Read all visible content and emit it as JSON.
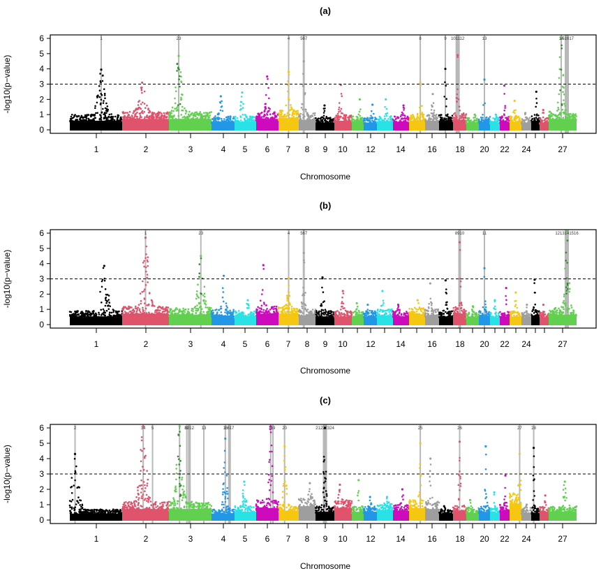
{
  "chart_data": [
    {
      "type": "scatter",
      "subtype": "manhattan",
      "title": "(a)",
      "xlabel": "Chromosome",
      "ylabel": "-log10(p−value)",
      "ylim": [
        0,
        6.2
      ],
      "yticks": [
        0,
        1,
        2,
        3,
        4,
        5,
        6
      ],
      "threshold": 3,
      "xtick_labels": [
        "1",
        "2",
        "3",
        "4",
        "5",
        "6",
        "7",
        "8",
        "9",
        "10",
        "12",
        "14",
        "16",
        "18",
        "20",
        "22",
        "24",
        "27"
      ],
      "chromosomes": [
        {
          "chr": 1,
          "max": 3.95,
          "base": 1.0
        },
        {
          "chr": 2,
          "max": 3.1,
          "base": 1.2
        },
        {
          "chr": 3,
          "max": 4.85,
          "base": 1.2
        },
        {
          "chr": 4,
          "max": 2.2,
          "base": 0.9
        },
        {
          "chr": 5,
          "max": 2.45,
          "base": 0.9
        },
        {
          "chr": 6,
          "max": 3.5,
          "base": 1.2
        },
        {
          "chr": 7,
          "max": 3.8,
          "base": 1.3
        },
        {
          "chr": 8,
          "max": 4.5,
          "base": 1.1
        },
        {
          "chr": 9,
          "max": 1.6,
          "base": 0.8
        },
        {
          "chr": 10,
          "max": 2.95,
          "base": 1.0
        },
        {
          "chr": 11,
          "max": 2.0,
          "base": 0.9
        },
        {
          "chr": 12,
          "max": 1.65,
          "base": 0.8
        },
        {
          "chr": 13,
          "max": 2.0,
          "base": 0.9
        },
        {
          "chr": 14,
          "max": 1.6,
          "base": 0.9
        },
        {
          "chr": 15,
          "max": 3.1,
          "base": 1.0
        },
        {
          "chr": 16,
          "max": 2.35,
          "base": 1.0
        },
        {
          "chr": 17,
          "max": 4.0,
          "base": 1.0
        },
        {
          "chr": 18,
          "max": 4.9,
          "base": 1.1
        },
        {
          "chr": 19,
          "max": 1.0,
          "base": 0.8
        },
        {
          "chr": 20,
          "max": 3.3,
          "base": 0.9
        },
        {
          "chr": 21,
          "max": 1.0,
          "base": 0.8
        },
        {
          "chr": 22,
          "max": 2.9,
          "base": 0.9
        },
        {
          "chr": 23,
          "max": 1.9,
          "base": 0.9
        },
        {
          "chr": 24,
          "max": 1.1,
          "base": 0.8
        },
        {
          "chr": 25,
          "max": 2.5,
          "base": 1.0
        },
        {
          "chr": 26,
          "max": 1.3,
          "base": 0.8
        },
        {
          "chr": 27,
          "max": 6.2,
          "base": 1.2
        }
      ],
      "highlight_labels": [
        "1",
        "2",
        "3",
        "4",
        "5",
        "6",
        "7",
        "8",
        "9",
        "10",
        "11",
        "12",
        "13",
        "14",
        "15",
        "16",
        "17"
      ],
      "highlights": [
        {
          "chr": 1,
          "pos": 0.6,
          "label": "1"
        },
        {
          "chr": 3,
          "pos": 0.23,
          "label": "23"
        },
        {
          "chr": 7,
          "pos": 0.5,
          "label": "4"
        },
        {
          "chr": 8,
          "pos": 0.3,
          "label": "567"
        },
        {
          "chr": 15,
          "pos": 0.7,
          "label": "8"
        },
        {
          "chr": 17,
          "pos": 0.45,
          "label": "9"
        },
        {
          "chr": 18,
          "pos": 0.35,
          "label": "101112"
        },
        {
          "chr": 20,
          "pos": 0.5,
          "label": "13"
        },
        {
          "chr": 27,
          "pos": 0.45,
          "label": "14"
        },
        {
          "chr": 27,
          "pos": 0.65,
          "label": "151617"
        }
      ]
    },
    {
      "type": "scatter",
      "subtype": "manhattan",
      "title": "(b)",
      "xlabel": "Chromosome",
      "ylabel": "-log10(p−value)",
      "ylim": [
        0,
        6.2
      ],
      "yticks": [
        0,
        1,
        2,
        3,
        4,
        5,
        6
      ],
      "threshold": 3,
      "xtick_labels": [
        "1",
        "2",
        "3",
        "4",
        "5",
        "6",
        "7",
        "8",
        "9",
        "10",
        "12",
        "14",
        "16",
        "18",
        "20",
        "22",
        "24",
        "27"
      ],
      "chromosomes": [
        {
          "chr": 1,
          "max": 3.85,
          "base": 0.9
        },
        {
          "chr": 2,
          "max": 5.7,
          "base": 1.2
        },
        {
          "chr": 3,
          "max": 4.5,
          "base": 1.1
        },
        {
          "chr": 4,
          "max": 3.2,
          "base": 1.0
        },
        {
          "chr": 5,
          "max": 1.6,
          "base": 0.9
        },
        {
          "chr": 6,
          "max": 3.9,
          "base": 1.2
        },
        {
          "chr": 7,
          "max": 3.05,
          "base": 1.2
        },
        {
          "chr": 8,
          "max": 4.7,
          "base": 1.0
        },
        {
          "chr": 9,
          "max": 3.1,
          "base": 0.9
        },
        {
          "chr": 10,
          "max": 2.2,
          "base": 0.9
        },
        {
          "chr": 11,
          "max": 1.4,
          "base": 0.9
        },
        {
          "chr": 12,
          "max": 1.3,
          "base": 0.9
        },
        {
          "chr": 13,
          "max": 2.2,
          "base": 1.0
        },
        {
          "chr": 14,
          "max": 1.3,
          "base": 0.9
        },
        {
          "chr": 15,
          "max": 1.6,
          "base": 1.1
        },
        {
          "chr": 16,
          "max": 2.7,
          "base": 1.0
        },
        {
          "chr": 17,
          "max": 2.9,
          "base": 0.9
        },
        {
          "chr": 18,
          "max": 5.4,
          "base": 1.2
        },
        {
          "chr": 19,
          "max": 1.2,
          "base": 0.8
        },
        {
          "chr": 20,
          "max": 3.7,
          "base": 0.9
        },
        {
          "chr": 21,
          "max": 1.6,
          "base": 0.8
        },
        {
          "chr": 22,
          "max": 2.4,
          "base": 0.9
        },
        {
          "chr": 23,
          "max": 2.1,
          "base": 0.9
        },
        {
          "chr": 24,
          "max": 1.3,
          "base": 0.8
        },
        {
          "chr": 25,
          "max": 2.95,
          "base": 1.0
        },
        {
          "chr": 26,
          "max": 1.3,
          "base": 0.8
        },
        {
          "chr": 27,
          "max": 6.2,
          "base": 1.1
        }
      ],
      "highlights": [
        {
          "chr": 2,
          "pos": 0.5,
          "label": "1"
        },
        {
          "chr": 3,
          "pos": 0.75,
          "label": "23"
        },
        {
          "chr": 7,
          "pos": 0.5,
          "label": "4"
        },
        {
          "chr": 8,
          "pos": 0.3,
          "label": "567"
        },
        {
          "chr": 18,
          "pos": 0.5,
          "label": "8910"
        },
        {
          "chr": 20,
          "pos": 0.5,
          "label": "11"
        },
        {
          "chr": 27,
          "pos": 0.65,
          "label": "1213141516"
        }
      ]
    },
    {
      "type": "scatter",
      "subtype": "manhattan",
      "title": "(c)",
      "xlabel": "Chromosome",
      "ylabel": "-log10(p−value)",
      "ylim": [
        0,
        6.2
      ],
      "yticks": [
        0,
        1,
        2,
        3,
        4,
        5,
        6
      ],
      "threshold": 3,
      "xtick_labels": [
        "1",
        "2",
        "3",
        "4",
        "5",
        "6",
        "7",
        "8",
        "9",
        "10",
        "12",
        "14",
        "16",
        "18",
        "20",
        "22",
        "24",
        "27"
      ],
      "chromosomes": [
        {
          "chr": 1,
          "max": 4.3,
          "base": 0.7
        },
        {
          "chr": 2,
          "max": 6.2,
          "base": 1.2
        },
        {
          "chr": 3,
          "max": 6.2,
          "base": 1.2
        },
        {
          "chr": 4,
          "max": 5.3,
          "base": 0.7
        },
        {
          "chr": 5,
          "max": 2.5,
          "base": 0.9
        },
        {
          "chr": 6,
          "max": 6.2,
          "base": 1.3
        },
        {
          "chr": 7,
          "max": 4.8,
          "base": 1.0
        },
        {
          "chr": 8,
          "max": 2.4,
          "base": 1.5
        },
        {
          "chr": 9,
          "max": 6.0,
          "base": 0.9
        },
        {
          "chr": 10,
          "max": 2.3,
          "base": 1.3
        },
        {
          "chr": 11,
          "max": 2.6,
          "base": 0.9
        },
        {
          "chr": 12,
          "max": 1.5,
          "base": 0.9
        },
        {
          "chr": 13,
          "max": 1.5,
          "base": 1.1
        },
        {
          "chr": 14,
          "max": 2.0,
          "base": 1.0
        },
        {
          "chr": 15,
          "max": 5.0,
          "base": 1.3
        },
        {
          "chr": 16,
          "max": 4.0,
          "base": 1.2
        },
        {
          "chr": 17,
          "max": 0.9,
          "base": 0.7
        },
        {
          "chr": 18,
          "max": 5.1,
          "base": 1.0
        },
        {
          "chr": 19,
          "max": 1.3,
          "base": 0.8
        },
        {
          "chr": 20,
          "max": 4.8,
          "base": 0.9
        },
        {
          "chr": 21,
          "max": 1.8,
          "base": 0.8
        },
        {
          "chr": 22,
          "max": 2.9,
          "base": 1.0
        },
        {
          "chr": 23,
          "max": 4.3,
          "base": 1.8
        },
        {
          "chr": 24,
          "max": 1.0,
          "base": 0.8
        },
        {
          "chr": 25,
          "max": 4.7,
          "base": 0.8
        },
        {
          "chr": 26,
          "max": 1.6,
          "base": 0.9
        },
        {
          "chr": 27,
          "max": 2.5,
          "base": 0.9
        }
      ],
      "highlights": [
        {
          "chr": 1,
          "pos": 0.1,
          "label": "2"
        },
        {
          "chr": 2,
          "pos": 0.45,
          "label": "34"
        },
        {
          "chr": 2,
          "pos": 0.65,
          "label": "5"
        },
        {
          "chr": 3,
          "pos": 0.25,
          "label": "7"
        },
        {
          "chr": 3,
          "pos": 0.42,
          "label": "89"
        },
        {
          "chr": 3,
          "pos": 0.48,
          "label": "1012"
        },
        {
          "chr": 3,
          "pos": 0.82,
          "label": "13"
        },
        {
          "chr": 4,
          "pos": 0.6,
          "label": "15"
        },
        {
          "chr": 4,
          "pos": 0.78,
          "label": "1617"
        },
        {
          "chr": 6,
          "pos": 0.65,
          "label": "18"
        },
        {
          "chr": 6,
          "pos": 0.75,
          "label": "19"
        },
        {
          "chr": 7,
          "pos": 0.3,
          "label": "20"
        },
        {
          "chr": 9,
          "pos": 0.5,
          "label": "21222324"
        },
        {
          "chr": 15,
          "pos": 0.7,
          "label": "25"
        },
        {
          "chr": 18,
          "pos": 0.5,
          "label": "26"
        },
        {
          "chr": 23,
          "pos": 0.85,
          "label": "27"
        },
        {
          "chr": 25,
          "pos": 0.3,
          "label": "28"
        }
      ]
    }
  ],
  "colors": {
    "palette": [
      "#000000",
      "#DF536B",
      "#61D04F",
      "#2297E6",
      "#28E2E5",
      "#CD0BBC",
      "#F5C710",
      "#9E9E9E"
    ],
    "threshold_line": "#000000",
    "highlight_band": "#A0A0A0"
  }
}
